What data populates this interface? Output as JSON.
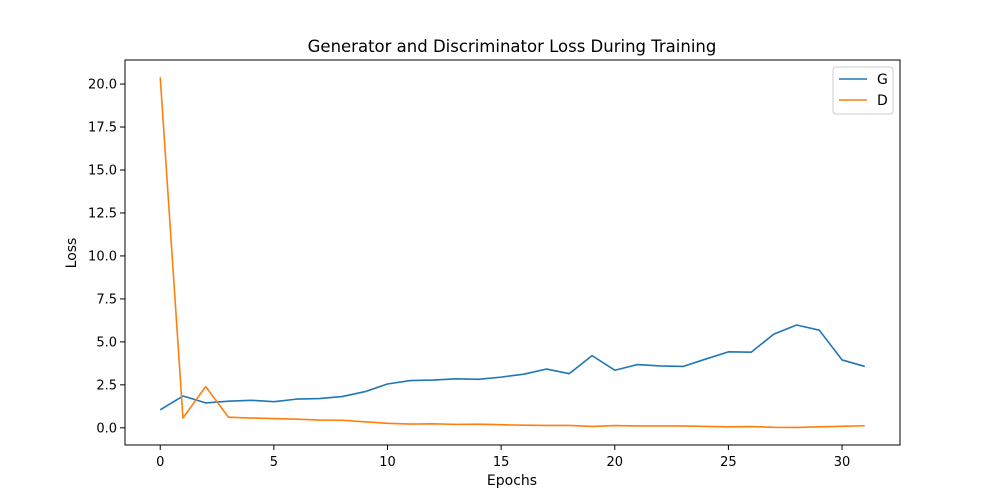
{
  "chart_data": {
    "type": "line",
    "title": "Generator and Discriminator Loss During Training",
    "xlabel": "Epochs",
    "ylabel": "Loss",
    "xlim": [
      -1.55,
      32.55
    ],
    "ylim": [
      -1.0,
      21.4
    ],
    "xticks": [
      0,
      5,
      10,
      15,
      20,
      25,
      30
    ],
    "yticks": [
      0.0,
      2.5,
      5.0,
      7.5,
      10.0,
      12.5,
      15.0,
      17.5,
      20.0
    ],
    "ytick_labels": [
      "0.0",
      "2.5",
      "5.0",
      "7.5",
      "10.0",
      "12.5",
      "15.0",
      "17.5",
      "20.0"
    ],
    "grid": false,
    "legend_position": "top-right",
    "x": [
      0,
      1,
      2,
      3,
      4,
      5,
      6,
      7,
      8,
      9,
      10,
      11,
      12,
      13,
      14,
      15,
      16,
      17,
      18,
      19,
      20,
      21,
      22,
      23,
      24,
      25,
      26,
      27,
      28,
      29,
      30,
      31
    ],
    "series": [
      {
        "name": "G",
        "color": "#1f77b4",
        "values": [
          1.05,
          1.85,
          1.45,
          1.55,
          1.6,
          1.52,
          1.67,
          1.7,
          1.82,
          2.1,
          2.55,
          2.75,
          2.78,
          2.85,
          2.82,
          2.95,
          3.12,
          3.42,
          3.15,
          4.2,
          3.35,
          3.68,
          3.6,
          3.57,
          4.0,
          4.42,
          4.4,
          5.45,
          5.98,
          5.68,
          3.95,
          3.57
        ]
      },
      {
        "name": "D",
        "color": "#ff7f0e",
        "values": [
          20.4,
          0.57,
          2.4,
          0.62,
          0.57,
          0.54,
          0.5,
          0.45,
          0.44,
          0.35,
          0.26,
          0.22,
          0.23,
          0.2,
          0.21,
          0.18,
          0.15,
          0.14,
          0.14,
          0.08,
          0.13,
          0.11,
          0.11,
          0.11,
          0.08,
          0.06,
          0.07,
          0.03,
          0.02,
          0.06,
          0.09,
          0.12
        ]
      }
    ]
  }
}
